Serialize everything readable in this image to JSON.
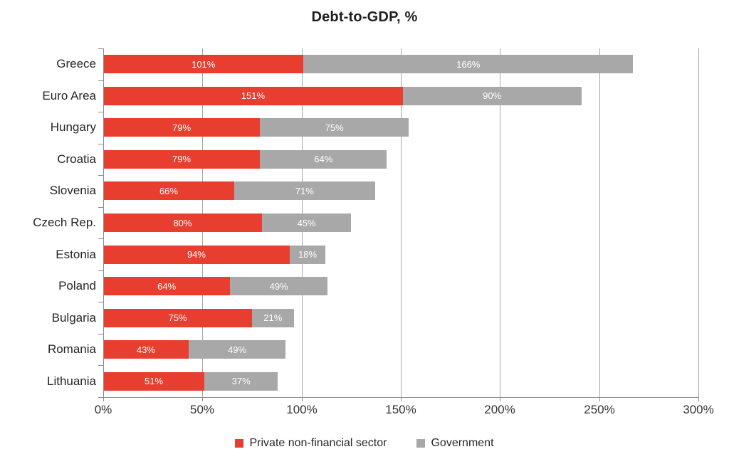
{
  "title": "Debt-to-GDP, %",
  "colors": {
    "private": "#e83e30",
    "government": "#a8a8a8",
    "gridline": "#a6a6a6",
    "axis": "#8c8c8c",
    "value_label": "#ffffff"
  },
  "legend": {
    "items": [
      {
        "label": "Private non-financial sector",
        "series": "private"
      },
      {
        "label": "Government",
        "series": "government"
      }
    ],
    "position": "bottom"
  },
  "chart_data": {
    "type": "bar",
    "orientation": "horizontal",
    "stacked": true,
    "title": "Debt-to-GDP, %",
    "categories": [
      "Greece",
      "Euro Area",
      "Hungary",
      "Croatia",
      "Slovenia",
      "Czech Rep.",
      "Estonia",
      "Poland",
      "Bulgaria",
      "Romania",
      "Lithuania"
    ],
    "series": [
      {
        "name": "Private non-financial sector",
        "color": "#e83e30",
        "values": [
          101,
          151,
          79,
          79,
          66,
          80,
          94,
          64,
          75,
          43,
          51
        ]
      },
      {
        "name": "Government",
        "color": "#a8a8a8",
        "values": [
          166,
          90,
          75,
          64,
          71,
          45,
          18,
          49,
          21,
          49,
          37
        ]
      }
    ],
    "value_labels": {
      "private": [
        "101%",
        "151%",
        "79%",
        "79%",
        "66%",
        "80%",
        "94%",
        "64%",
        "75%",
        "43%",
        "51%"
      ],
      "government": [
        "166%",
        "90%",
        "75%",
        "64%",
        "71%",
        "45%",
        "18%",
        "49%",
        "21%",
        "49%",
        "37%"
      ]
    },
    "xlabel": "",
    "ylabel": "",
    "x_axis": {
      "min": 0,
      "max": 300,
      "tick_step": 50,
      "tick_labels": [
        "0%",
        "50%",
        "100%",
        "150%",
        "200%",
        "250%",
        "300%"
      ]
    },
    "grid": true,
    "legend_position": "bottom"
  }
}
